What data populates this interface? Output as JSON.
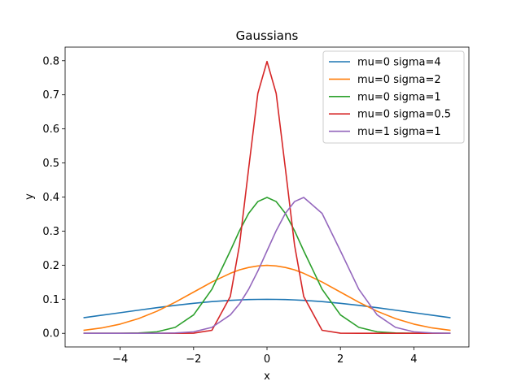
{
  "chart_data": {
    "type": "line",
    "title": "Gaussians",
    "xlabel": "x",
    "ylabel": "y",
    "xlim": [
      -5.5,
      5.5
    ],
    "ylim": [
      -0.04,
      0.84
    ],
    "xticks": [
      -4,
      -2,
      0,
      2,
      4
    ],
    "xtick_labels": [
      "−4",
      "−2",
      "0",
      "2",
      "4"
    ],
    "yticks": [
      0.0,
      0.1,
      0.2,
      0.3,
      0.4,
      0.5,
      0.6,
      0.7,
      0.8
    ],
    "ytick_labels": [
      "0.0",
      "0.1",
      "0.2",
      "0.3",
      "0.4",
      "0.5",
      "0.6",
      "0.7",
      "0.8"
    ],
    "grid": false,
    "legend_position": "top-right",
    "x": [
      -5.0,
      -4.5,
      -4.0,
      -3.5,
      -3.0,
      -2.5,
      -2.0,
      -1.5,
      -1.0,
      -0.75,
      -0.5,
      -0.25,
      0.0,
      0.25,
      0.5,
      0.75,
      1.0,
      1.5,
      2.0,
      2.5,
      3.0,
      3.5,
      4.0,
      4.5,
      5.0
    ],
    "series": [
      {
        "name": "mu=0 sigma=4",
        "color": "#1f77b4",
        "values": [
          0.0457,
          0.0531,
          0.0605,
          0.0679,
          0.0753,
          0.0821,
          0.088,
          0.093,
          0.0967,
          0.098,
          0.099,
          0.0995,
          0.0997,
          0.0995,
          0.099,
          0.098,
          0.0967,
          0.093,
          0.088,
          0.0821,
          0.0753,
          0.0679,
          0.0605,
          0.0531,
          0.0457
        ]
      },
      {
        "name": "mu=0 sigma=2",
        "color": "#ff7f0e",
        "values": [
          0.0088,
          0.0158,
          0.027,
          0.0431,
          0.0648,
          0.0913,
          0.121,
          0.1506,
          0.176,
          0.1862,
          0.1933,
          0.1978,
          0.1995,
          0.1978,
          0.1933,
          0.1862,
          0.176,
          0.1506,
          0.121,
          0.0913,
          0.0648,
          0.0431,
          0.027,
          0.0158,
          0.0088
        ]
      },
      {
        "name": "mu=0 sigma=1",
        "color": "#2ca02c",
        "values": [
          0.0,
          0.0,
          0.0001,
          0.0009,
          0.0044,
          0.0175,
          0.054,
          0.1295,
          0.242,
          0.3011,
          0.3521,
          0.3867,
          0.3989,
          0.3867,
          0.3521,
          0.3011,
          0.242,
          0.1295,
          0.054,
          0.0175,
          0.0044,
          0.0009,
          0.0001,
          0.0,
          0.0
        ]
      },
      {
        "name": "mu=0 sigma=0.5",
        "color": "#d62728",
        "values": [
          0.0,
          0.0,
          0.0,
          0.0,
          0.0,
          0.0,
          0.0003,
          0.0089,
          0.108,
          0.259,
          0.4839,
          0.7041,
          0.7979,
          0.7041,
          0.4839,
          0.259,
          0.108,
          0.0089,
          0.0003,
          0.0,
          0.0,
          0.0,
          0.0,
          0.0,
          0.0
        ]
      },
      {
        "name": "mu=1 sigma=1",
        "color": "#9467bd",
        "values": [
          0.0,
          0.0,
          0.0,
          0.0,
          0.0001,
          0.0009,
          0.0044,
          0.0175,
          0.054,
          0.0863,
          0.1295,
          0.1826,
          0.242,
          0.3011,
          0.3521,
          0.3867,
          0.3989,
          0.3521,
          0.242,
          0.1295,
          0.054,
          0.0175,
          0.0044,
          0.0009,
          0.0001
        ]
      }
    ]
  }
}
